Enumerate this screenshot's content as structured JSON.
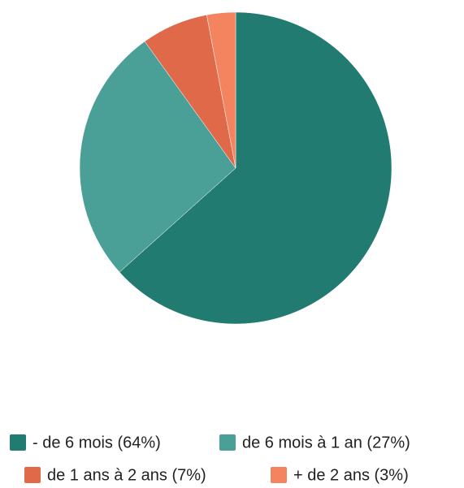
{
  "chart_data": {
    "type": "pie",
    "categories": [
      "- de 6 mois (64%)",
      "de 6 mois à 1 an (27%)",
      "de 1 ans à 2 ans (7%)",
      "+ de 2 ans (3%)"
    ],
    "values": [
      64,
      27,
      7,
      3
    ],
    "colors": [
      "#217b71",
      "#4aa097",
      "#e0694a",
      "#f4845f"
    ],
    "legend": "bottom"
  }
}
